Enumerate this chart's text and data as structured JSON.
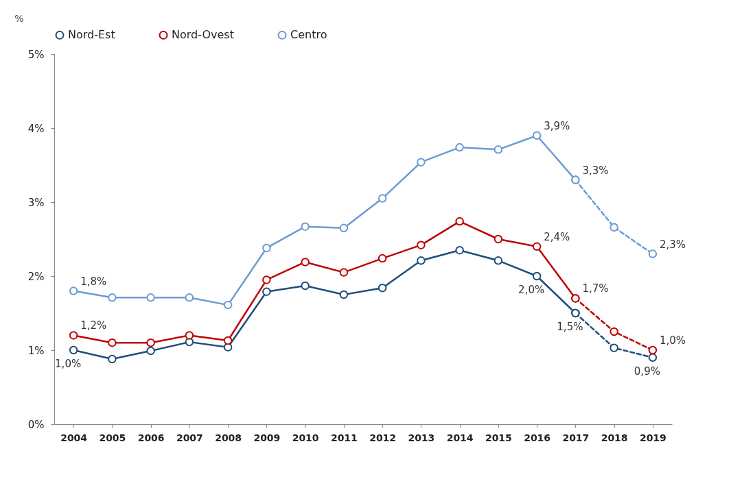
{
  "chart_data": {
    "type": "line",
    "ylabel": "%",
    "categories": [
      "2004",
      "2005",
      "2006",
      "2007",
      "2008",
      "2009",
      "2010",
      "2011",
      "2012",
      "2013",
      "2014",
      "2015",
      "2016",
      "2017",
      "2018",
      "2019"
    ],
    "ylim": [
      0,
      5
    ],
    "yticks": [
      {
        "value": 0,
        "label": "0%"
      },
      {
        "value": 1,
        "label": "1%"
      },
      {
        "value": 2,
        "label": "2%"
      },
      {
        "value": 3,
        "label": "3%"
      },
      {
        "value": 4,
        "label": "4%"
      },
      {
        "value": 5,
        "label": "5%"
      }
    ],
    "grid": false,
    "legend": "top",
    "marker": "circle",
    "series": [
      {
        "name": "Nord-Est",
        "color": "#1f4e79",
        "line_style": "solid",
        "values": [
          1.0,
          0.88,
          0.99,
          1.11,
          1.04,
          1.79,
          1.87,
          1.75,
          1.84,
          2.21,
          2.35,
          2.21,
          2.0,
          1.5,
          null,
          null
        ],
        "value_labels": [
          "1,0%",
          null,
          null,
          null,
          null,
          null,
          null,
          null,
          null,
          null,
          null,
          null,
          "2,0%",
          "1,5%",
          null,
          null
        ]
      },
      {
        "name": "Nord-Ovest",
        "color": "#c00000",
        "line_style": "solid",
        "values": [
          1.2,
          1.1,
          1.1,
          1.2,
          1.13,
          1.95,
          2.19,
          2.05,
          2.24,
          2.42,
          2.74,
          2.5,
          2.4,
          1.7,
          null,
          null
        ],
        "value_labels": [
          "1,2%",
          null,
          null,
          null,
          null,
          null,
          null,
          null,
          null,
          null,
          null,
          null,
          "2,4%",
          "1,7%",
          null,
          null
        ]
      },
      {
        "name": "Centro",
        "color": "#6b9bd2",
        "line_style": "solid",
        "values": [
          1.8,
          1.71,
          1.71,
          1.71,
          1.61,
          2.38,
          2.67,
          2.65,
          3.05,
          3.54,
          3.74,
          3.71,
          3.9,
          3.3,
          null,
          null
        ],
        "value_labels": [
          "1,8%",
          null,
          null,
          null,
          null,
          null,
          null,
          null,
          null,
          null,
          null,
          null,
          "3,9%",
          "3,3%",
          null,
          null
        ]
      },
      {
        "color": "#1f4e79",
        "line_style": "dashed",
        "values": [
          null,
          null,
          null,
          null,
          null,
          null,
          null,
          null,
          null,
          null,
          null,
          null,
          null,
          1.5,
          1.03,
          0.9
        ],
        "value_labels": [
          null,
          null,
          null,
          null,
          null,
          null,
          null,
          null,
          null,
          null,
          null,
          null,
          null,
          null,
          null,
          "0,9%"
        ]
      },
      {
        "color": "#c00000",
        "line_style": "dashed",
        "values": [
          null,
          null,
          null,
          null,
          null,
          null,
          null,
          null,
          null,
          null,
          null,
          null,
          null,
          1.7,
          1.25,
          1.0
        ],
        "value_labels": [
          null,
          null,
          null,
          null,
          null,
          null,
          null,
          null,
          null,
          null,
          null,
          null,
          null,
          null,
          null,
          "1,0%"
        ]
      },
      {
        "color": "#6b9bd2",
        "line_style": "dashed",
        "values": [
          null,
          null,
          null,
          null,
          null,
          null,
          null,
          null,
          null,
          null,
          null,
          null,
          null,
          3.3,
          2.66,
          2.3
        ],
        "value_labels": [
          null,
          null,
          null,
          null,
          null,
          null,
          null,
          null,
          null,
          null,
          null,
          null,
          null,
          null,
          null,
          "2,3%"
        ]
      }
    ]
  }
}
